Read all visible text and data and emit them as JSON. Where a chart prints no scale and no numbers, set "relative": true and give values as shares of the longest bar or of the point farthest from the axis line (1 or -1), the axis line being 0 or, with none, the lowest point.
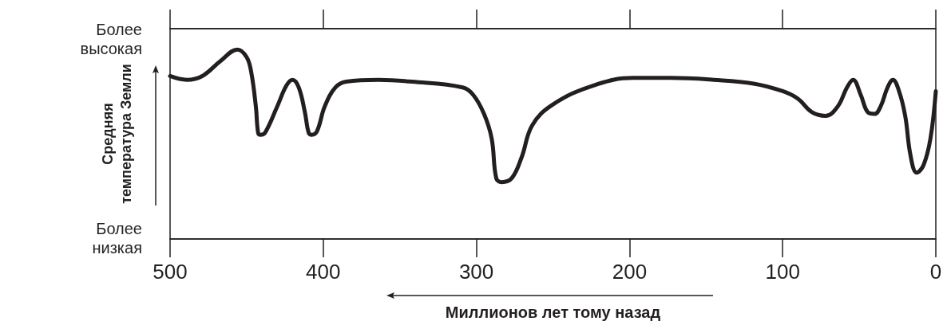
{
  "chart_data": {
    "type": "line",
    "relative": true,
    "xlabel": "Миллионов лет тому назад",
    "ylabel": "Средняя температура Земли",
    "annotations": [
      "Более высокая",
      "Более низкая"
    ],
    "xlim": [
      500,
      0
    ],
    "xticks": [
      500,
      400,
      300,
      200,
      100,
      0
    ],
    "marker": "none",
    "line_style": "solid",
    "series": [
      {
        "color": "#231f20",
        "x": [
          500,
          489,
          479,
          467,
          456,
          450,
          447,
          444,
          442.5,
          441,
          438,
          430,
          424,
          420,
          416,
          412,
          409.5,
          407.5,
          404,
          399,
          392,
          385,
          364,
          342,
          309,
          302,
          295,
          290,
          287,
          283.5,
          277,
          270.5,
          263.5,
          250,
          223.5,
          197.5,
          173,
          145,
          119,
          100,
          90,
          81,
          72,
          64,
          58,
          54,
          49,
          44.5,
          40,
          36,
          31.5,
          28,
          24,
          20,
          16.5,
          12.5,
          8,
          3.5,
          0
        ],
        "values": [
          0.86,
          0.84,
          0.86,
          0.94,
          1,
          0.96,
          0.88,
          0.7,
          0.56,
          0.55,
          0.56,
          0.7,
          0.81,
          0.84,
          0.8,
          0.67,
          0.56,
          0.55,
          0.57,
          0.7,
          0.8,
          0.83,
          0.84,
          0.83,
          0.8,
          0.76,
          0.66,
          0.53,
          0.32,
          0.3,
          0.32,
          0.43,
          0.6,
          0.71,
          0.81,
          0.85,
          0.85,
          0.84,
          0.82,
          0.78,
          0.74,
          0.67,
          0.65,
          0.7,
          0.8,
          0.84,
          0.76,
          0.67,
          0.66,
          0.7,
          0.8,
          0.84,
          0.78,
          0.65,
          0.44,
          0.35,
          0.39,
          0.53,
          0.78
        ]
      }
    ]
  }
}
